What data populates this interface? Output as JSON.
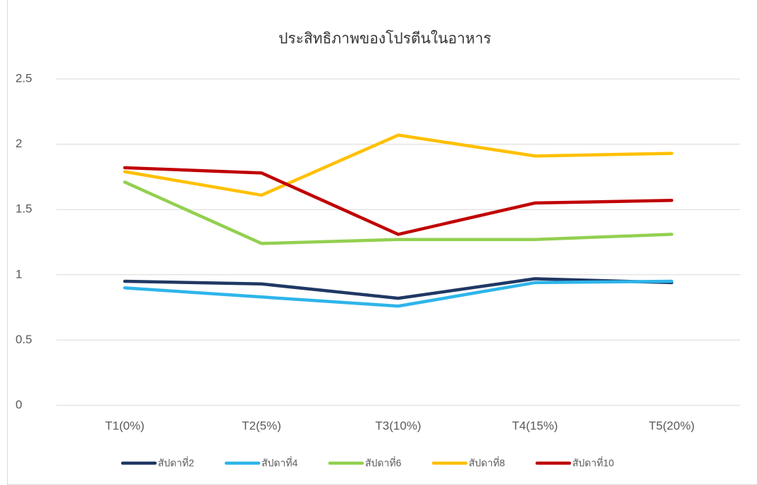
{
  "chart_data": {
    "type": "line",
    "title": "ประสิทธิภาพของโปรตีนในอาหาร",
    "categories": [
      "T1(0%)",
      "T2(5%)",
      "T3(10%)",
      "T4(15%)",
      "T5(20%)"
    ],
    "series": [
      {
        "name": "สัปดาที่2",
        "color": "#203864",
        "values": [
          0.95,
          0.93,
          0.82,
          0.97,
          0.94
        ]
      },
      {
        "name": "สัปดาที่4",
        "color": "#2eb5ea",
        "values": [
          0.9,
          0.83,
          0.76,
          0.94,
          0.95
        ]
      },
      {
        "name": "สัปดาที่6",
        "color": "#92d050",
        "values": [
          1.71,
          1.24,
          1.27,
          1.27,
          1.31
        ]
      },
      {
        "name": "สัปดาที่8",
        "color": "#ffc000",
        "values": [
          1.79,
          1.61,
          2.07,
          1.91,
          1.93
        ]
      },
      {
        "name": "สัปดาที่10",
        "color": "#c00000",
        "values": [
          1.82,
          1.78,
          1.31,
          1.55,
          1.57
        ]
      }
    ],
    "ylim": [
      0,
      2.5
    ],
    "yticks": [
      0,
      0.5,
      1,
      1.5,
      2,
      2.5
    ],
    "grid": true,
    "legend": "bottom"
  }
}
